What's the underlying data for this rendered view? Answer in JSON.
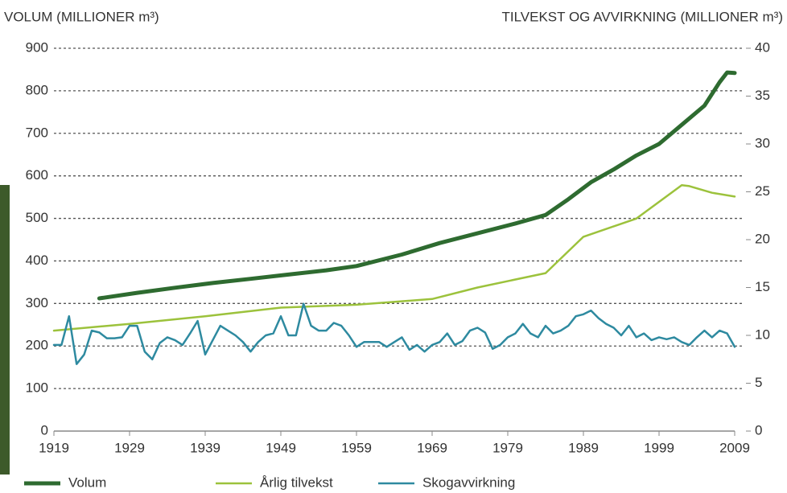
{
  "chart_data": {
    "type": "line",
    "y_label": "VOLUM (MILLIONER m³)",
    "y2_label": "TILVEKST OG AVVIRKNING (MILLIONER m³)",
    "xlim": [
      1919,
      2009
    ],
    "xticks": [
      1919,
      1929,
      1939,
      1949,
      1959,
      1969,
      1979,
      1989,
      1999,
      2009
    ],
    "ylim": [
      0,
      900
    ],
    "yticks": [
      0,
      100,
      200,
      300,
      400,
      500,
      600,
      700,
      800,
      900
    ],
    "y2lim": [
      0,
      40
    ],
    "y2ticks": [
      0,
      5,
      10,
      15,
      20,
      25,
      30,
      35,
      40
    ],
    "grid": true,
    "legend": "bottom",
    "series": [
      {
        "name": "Volum",
        "color": "#2e6b30",
        "x": [
          1925,
          1930,
          1935,
          1940,
          1945,
          1950,
          1955,
          1959,
          1965,
          1970,
          1975,
          1980,
          1984,
          1987,
          1990,
          1993,
          1996,
          1999,
          2002,
          2005,
          2007,
          2008,
          2009
        ],
        "values": [
          312,
          325,
          337,
          348,
          358,
          368,
          378,
          388,
          415,
          442,
          465,
          488,
          508,
          545,
          585,
          615,
          648,
          675,
          720,
          765,
          820,
          843,
          842
        ]
      },
      {
        "name": "Årlig tilvekst",
        "color": "#9cc23c",
        "axis": "y2",
        "x": [
          1919,
          1929,
          1939,
          1949,
          1959,
          1969,
          1975,
          1984,
          1989,
          1996,
          2002,
          2003,
          2006,
          2009
        ],
        "values": [
          10.5,
          11.2,
          12.0,
          12.9,
          13.2,
          13.8,
          15.0,
          16.5,
          20.3,
          22.2,
          25.7,
          25.6,
          24.9,
          24.5
        ]
      },
      {
        "name": "Skogavvirkning",
        "color": "#2e8aa0",
        "axis": "y2",
        "x": [
          1919,
          1920,
          1921,
          1922,
          1923,
          1924,
          1925,
          1926,
          1927,
          1928,
          1929,
          1930,
          1931,
          1932,
          1933,
          1934,
          1935,
          1936,
          1937,
          1938,
          1939,
          1940,
          1941,
          1942,
          1943,
          1944,
          1945,
          1946,
          1947,
          1948,
          1949,
          1950,
          1951,
          1952,
          1953,
          1954,
          1955,
          1956,
          1957,
          1958,
          1959,
          1960,
          1961,
          1962,
          1963,
          1964,
          1965,
          1966,
          1967,
          1968,
          1969,
          1970,
          1971,
          1972,
          1973,
          1974,
          1975,
          1976,
          1977,
          1978,
          1979,
          1980,
          1981,
          1982,
          1983,
          1984,
          1985,
          1986,
          1987,
          1988,
          1989,
          1990,
          1991,
          1992,
          1993,
          1994,
          1995,
          1996,
          1997,
          1998,
          1999,
          2000,
          2001,
          2002,
          2003,
          2004,
          2005,
          2006,
          2007,
          2008,
          2009
        ],
        "values": [
          9.0,
          9.0,
          12.0,
          7.0,
          8.0,
          10.5,
          10.3,
          9.7,
          9.7,
          9.8,
          11.0,
          11.0,
          8.3,
          7.5,
          9.2,
          9.8,
          9.5,
          9.0,
          10.2,
          11.5,
          8.0,
          9.5,
          11.0,
          10.5,
          10.0,
          9.3,
          8.3,
          9.3,
          10.0,
          10.2,
          12.0,
          10.0,
          10.0,
          13.3,
          11.0,
          10.5,
          10.5,
          11.3,
          11.0,
          10.0,
          8.8,
          9.3,
          9.3,
          9.3,
          8.8,
          9.3,
          9.8,
          8.5,
          9.0,
          8.3,
          9.0,
          9.3,
          10.2,
          9.0,
          9.4,
          10.5,
          10.8,
          10.3,
          8.6,
          9.0,
          9.8,
          10.2,
          11.2,
          10.2,
          9.8,
          11.0,
          10.2,
          10.5,
          11.0,
          12.0,
          12.2,
          12.6,
          11.8,
          11.2,
          10.8,
          10.0,
          11.0,
          9.8,
          10.2,
          9.5,
          9.8,
          9.6,
          9.8,
          9.3,
          9.0,
          9.8,
          10.5,
          9.8,
          10.5,
          10.2,
          8.8
        ]
      }
    ]
  }
}
